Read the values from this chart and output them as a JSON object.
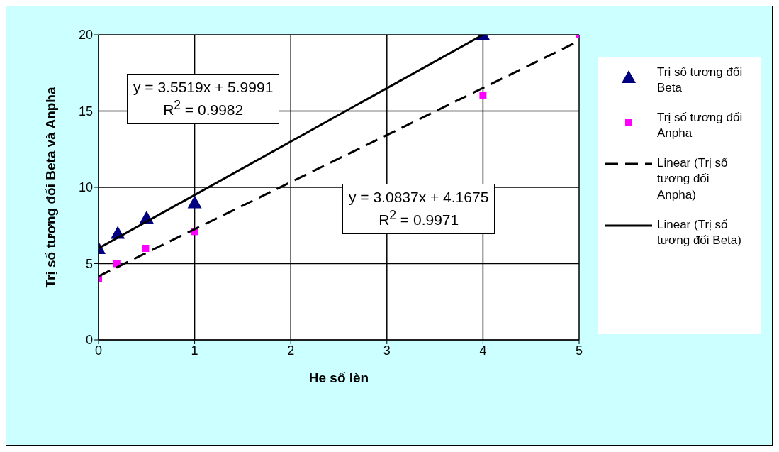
{
  "chart_data": {
    "type": "scatter",
    "xlabel": "He số lèn",
    "ylabel": "Trị số tương đối Beta và Anpha",
    "xlim": [
      0,
      5
    ],
    "xticks": [
      0,
      1,
      2,
      3,
      4,
      5
    ],
    "ylim": [
      0,
      20
    ],
    "yticks": [
      0,
      5,
      10,
      15,
      20
    ],
    "grid": true,
    "legend": "right",
    "series": [
      {
        "name": "Trị số tương đối Beta",
        "color": "#000080",
        "marker": "triangle",
        "x": [
          0,
          0.2,
          0.5,
          1,
          4
        ],
        "values": [
          6,
          7,
          8,
          9,
          20
        ]
      },
      {
        "name": "Trị số tương đối Anpha",
        "color": "#ff00ff",
        "marker": "square",
        "x": [
          0,
          0.19,
          0.49,
          1,
          4,
          5
        ],
        "values": [
          4,
          5,
          6,
          7.1,
          16.05,
          20
        ]
      },
      {
        "name": "Linear (Trị số tương đối Anpha)",
        "type": "line",
        "color": "#000000",
        "marker": "none",
        "line_style": "dashed",
        "x": [
          0,
          5
        ],
        "values": [
          4.17,
          19.6
        ]
      },
      {
        "name": "Linear (Trị số tương đối Beta)",
        "type": "line",
        "color": "#000000",
        "marker": "none",
        "line_style": "solid",
        "x": [
          0,
          4
        ],
        "values": [
          6,
          20
        ]
      }
    ],
    "annotations": [
      "y = 3.5519x + 5.9991\nR$^{2}$ = 0.9982",
      "y = 3.0837x + 4.1675\nR$^{2}$ = 0.9971"
    ]
  }
}
